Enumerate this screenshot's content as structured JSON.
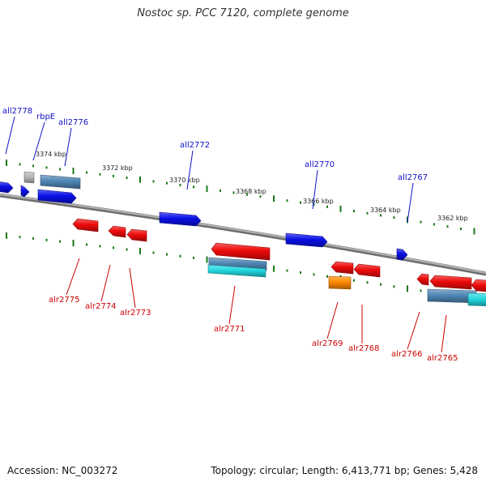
{
  "title": "Nostoc sp. PCC 7120, complete genome",
  "footer": {
    "accession": "Accession: NC_003272",
    "stats": "Topology: circular; Length: 6,413,771 bp; Genes: 5,428"
  },
  "colors": {
    "top_label": "#1010c8",
    "bottom_label": "#cc0000",
    "blue_gene": "#0a10e6",
    "red_gene": "#ee0a0a",
    "steel_gene": "#4f86b4",
    "cyan_gene": "#22d8e0",
    "orange_gene": "#ff8a00",
    "gray_gene": "#b8b8b8",
    "tick": "#1a7a1a",
    "backbone": "#8a8a8a"
  },
  "kbp_labels": [
    "3374 kbp",
    "3372 kbp",
    "3370 kbp",
    "3368 kbp",
    "3366 kbp",
    "3364 kbp",
    "3362 kbp"
  ],
  "top_genes": [
    {
      "label": "all2778",
      "color": "blue_gene"
    },
    {
      "label": "rbpE",
      "color": "gray_gene"
    },
    {
      "label": "all2776",
      "color": "steel_gene"
    },
    {
      "label": "all2772",
      "color": "blue_gene"
    },
    {
      "label": "all2770",
      "color": "blue_gene"
    },
    {
      "label": "all2767",
      "color": "blue_gene"
    }
  ],
  "bottom_genes": [
    {
      "label": "alr2775",
      "color": "red_gene"
    },
    {
      "label": "alr2774",
      "color": "red_gene"
    },
    {
      "label": "alr2773",
      "color": "red_gene"
    },
    {
      "label": "alr2771",
      "color": "red_gene"
    },
    {
      "label": "alr2769",
      "color": "orange_gene"
    },
    {
      "label": "alr2768",
      "color": "red_gene"
    },
    {
      "label": "alr2766",
      "color": "red_gene"
    },
    {
      "label": "alr2765",
      "color": "steel_gene"
    }
  ]
}
